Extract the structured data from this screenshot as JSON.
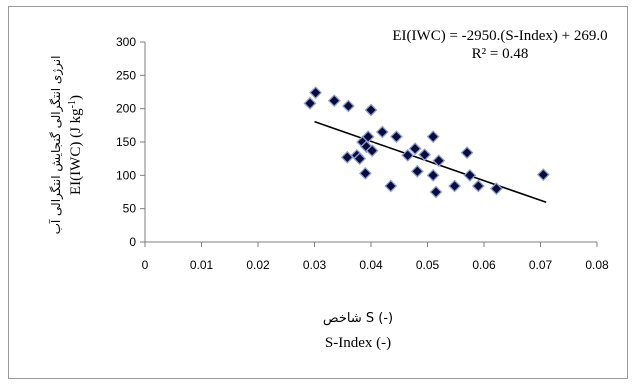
{
  "chart_data": {
    "type": "scatter",
    "title": "",
    "annotations": {
      "equation": "EI(IWC) = -2950.(S-Index) + 269.0",
      "r_squared": "R² = 0.48"
    },
    "xlabel_fa": "شاخص S (-)",
    "xlabel_en": "S-Index (-)",
    "ylabel_fa": "انرژی انتگرالی گنجایش انتگرالی آب",
    "ylabel_en_main": "EI(IWC) (J kg",
    "ylabel_en_sup": "-1",
    "ylabel_en_end": ")",
    "xlim": [
      0,
      0.08
    ],
    "ylim": [
      0,
      300
    ],
    "x_ticks": [
      0,
      0.01,
      0.02,
      0.03,
      0.04,
      0.05,
      0.06,
      0.07,
      0.08
    ],
    "x_tick_labels": [
      "0",
      "0.01",
      "0.02",
      "0.03",
      "0.04",
      "0.05",
      "0.06",
      "0.07",
      "0.08"
    ],
    "y_ticks": [
      0,
      50,
      100,
      150,
      200,
      250,
      300
    ],
    "y_tick_labels": [
      "0",
      "50",
      "100",
      "150",
      "200",
      "250",
      "300"
    ],
    "grid": false,
    "trendline": {
      "slope": -2950,
      "intercept": 269.0,
      "x_start": 0.03,
      "x_end": 0.071
    },
    "marker_color": "#0b0b3b",
    "marker_edge": "#8aa0d4",
    "points": [
      {
        "x": 0.0292,
        "y": 208
      },
      {
        "x": 0.0302,
        "y": 224
      },
      {
        "x": 0.0335,
        "y": 212
      },
      {
        "x": 0.036,
        "y": 204
      },
      {
        "x": 0.04,
        "y": 198
      },
      {
        "x": 0.0358,
        "y": 127
      },
      {
        "x": 0.0375,
        "y": 130
      },
      {
        "x": 0.038,
        "y": 125
      },
      {
        "x": 0.0385,
        "y": 150
      },
      {
        "x": 0.039,
        "y": 103
      },
      {
        "x": 0.0392,
        "y": 143
      },
      {
        "x": 0.0395,
        "y": 158
      },
      {
        "x": 0.0402,
        "y": 137
      },
      {
        "x": 0.042,
        "y": 165
      },
      {
        "x": 0.0435,
        "y": 84
      },
      {
        "x": 0.0445,
        "y": 158
      },
      {
        "x": 0.0465,
        "y": 130
      },
      {
        "x": 0.0478,
        "y": 140
      },
      {
        "x": 0.0482,
        "y": 106
      },
      {
        "x": 0.0495,
        "y": 131
      },
      {
        "x": 0.051,
        "y": 158
      },
      {
        "x": 0.051,
        "y": 100
      },
      {
        "x": 0.0515,
        "y": 75
      },
      {
        "x": 0.052,
        "y": 122
      },
      {
        "x": 0.0548,
        "y": 84
      },
      {
        "x": 0.057,
        "y": 134
      },
      {
        "x": 0.0575,
        "y": 100
      },
      {
        "x": 0.059,
        "y": 84
      },
      {
        "x": 0.0622,
        "y": 80
      },
      {
        "x": 0.0705,
        "y": 101
      }
    ]
  }
}
